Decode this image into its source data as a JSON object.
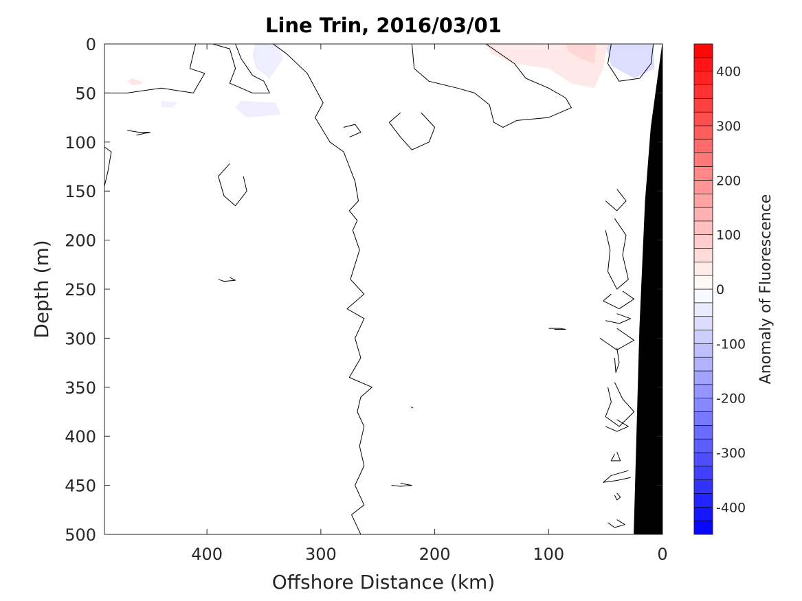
{
  "chart_data": {
    "type": "contour",
    "title": "Line Trin, 2016/03/01",
    "xlabel": "Offshore Distance (km)",
    "ylabel": "Depth (m)",
    "xlim": [
      490,
      0
    ],
    "ylim": [
      0,
      500
    ],
    "x_reversed": true,
    "y_reversed": true,
    "xticks": [
      400,
      300,
      200,
      100,
      0
    ],
    "yticks": [
      0,
      50,
      100,
      150,
      200,
      250,
      300,
      350,
      400,
      450,
      500
    ],
    "colorbar": {
      "label": "Anomaly of Fluorescence",
      "range": [
        -450,
        450
      ],
      "ticks": [
        400,
        300,
        200,
        100,
        0,
        -100,
        -200,
        -300,
        -400
      ],
      "levels": 36,
      "colors": {
        "max": "#ff0000",
        "mid": "#ffffff",
        "min": "#0000ff"
      }
    },
    "bathymetry": {
      "label": "",
      "fill": "#000000",
      "points": [
        [
          0,
          0
        ],
        [
          10,
          85
        ],
        [
          15,
          160
        ],
        [
          20,
          290
        ],
        [
          25,
          500
        ],
        [
          0,
          500
        ]
      ]
    },
    "fills": [
      {
        "value": -380,
        "points": [
          [
            45,
            0
          ],
          [
            10,
            0
          ],
          [
            9,
            12
          ],
          [
            18,
            20
          ],
          [
            30,
            20
          ],
          [
            42,
            14
          ]
        ]
      },
      {
        "value": -280,
        "points": [
          [
            42,
            0
          ],
          [
            13,
            0
          ],
          [
            12,
            10
          ],
          [
            20,
            15
          ],
          [
            32,
            14
          ],
          [
            40,
            8
          ]
        ]
      },
      {
        "value": -180,
        "points": [
          [
            38,
            0
          ],
          [
            16,
            0
          ],
          [
            14,
            6
          ],
          [
            22,
            10
          ],
          [
            34,
            8
          ]
        ]
      },
      {
        "value": -60,
        "points": [
          [
            50,
            0
          ],
          [
            8,
            0
          ],
          [
            7,
            25
          ],
          [
            25,
            35
          ],
          [
            45,
            22
          ]
        ]
      },
      {
        "value": 40,
        "points": [
          [
            155,
            0
          ],
          [
            48,
            0
          ],
          [
            52,
            25
          ],
          [
            60,
            45
          ],
          [
            80,
            40
          ],
          [
            100,
            25
          ],
          [
            130,
            20
          ],
          [
            150,
            10
          ]
        ]
      },
      {
        "value": 70,
        "points": [
          [
            85,
            0
          ],
          [
            58,
            0
          ],
          [
            60,
            20
          ],
          [
            72,
            15
          ],
          [
            82,
            8
          ]
        ]
      },
      {
        "value": 45,
        "points": [
          [
            465,
            35
          ],
          [
            455,
            40
          ],
          [
            465,
            42
          ],
          [
            470,
            38
          ]
        ]
      },
      {
        "value": -30,
        "points": [
          [
            358,
            0
          ],
          [
            338,
            0
          ],
          [
            333,
            15
          ],
          [
            345,
            35
          ],
          [
            357,
            25
          ],
          [
            360,
            12
          ]
        ]
      },
      {
        "value": -30,
        "points": [
          [
            370,
            58
          ],
          [
            340,
            60
          ],
          [
            335,
            72
          ],
          [
            365,
            75
          ],
          [
            375,
            65
          ]
        ]
      },
      {
        "value": -25,
        "points": [
          [
            440,
            58
          ],
          [
            425,
            60
          ],
          [
            430,
            65
          ],
          [
            440,
            64
          ]
        ]
      }
    ],
    "contours": [
      {
        "value": 0,
        "points": [
          [
            410,
            0
          ],
          [
            415,
            25
          ],
          [
            402,
            30
          ],
          [
            412,
            50
          ],
          [
            440,
            45
          ],
          [
            470,
            50
          ],
          [
            490,
            50
          ]
        ]
      },
      {
        "value": 0,
        "points": [
          [
            395,
            0
          ],
          [
            380,
            5
          ],
          [
            375,
            25
          ],
          [
            380,
            40
          ],
          [
            360,
            50
          ],
          [
            345,
            50
          ],
          [
            350,
            38
          ],
          [
            360,
            32
          ],
          [
            370,
            15
          ],
          [
            375,
            0
          ]
        ]
      },
      {
        "value": 0,
        "points": [
          [
            342,
            0
          ],
          [
            330,
            10
          ],
          [
            312,
            30
          ],
          [
            298,
            60
          ],
          [
            305,
            75
          ],
          [
            292,
            100
          ],
          [
            280,
            110
          ],
          [
            275,
            125
          ],
          [
            270,
            140
          ],
          [
            267,
            160
          ],
          [
            275,
            170
          ],
          [
            268,
            180
          ],
          [
            272,
            190
          ],
          [
            266,
            210
          ],
          [
            274,
            240
          ],
          [
            262,
            255
          ],
          [
            277,
            270
          ],
          [
            262,
            280
          ],
          [
            270,
            300
          ],
          [
            265,
            320
          ],
          [
            275,
            340
          ],
          [
            255,
            350
          ],
          [
            265,
            360
          ],
          [
            268,
            375
          ],
          [
            262,
            390
          ],
          [
            266,
            410
          ],
          [
            262,
            430
          ],
          [
            270,
            450
          ],
          [
            262,
            470
          ],
          [
            273,
            480
          ],
          [
            265,
            500
          ]
        ]
      },
      {
        "value": 0,
        "points": [
          [
            220,
            0
          ],
          [
            218,
            25
          ],
          [
            205,
            38
          ],
          [
            180,
            45
          ],
          [
            165,
            50
          ],
          [
            152,
            62
          ],
          [
            148,
            80
          ],
          [
            140,
            85
          ],
          [
            128,
            78
          ],
          [
            100,
            75
          ],
          [
            80,
            65
          ],
          [
            85,
            55
          ],
          [
            100,
            45
          ],
          [
            120,
            35
          ],
          [
            130,
            20
          ],
          [
            155,
            0
          ]
        ]
      },
      {
        "value": 0,
        "points": [
          [
            45,
            0
          ],
          [
            48,
            20
          ],
          [
            38,
            38
          ],
          [
            20,
            35
          ],
          [
            10,
            20
          ],
          [
            8,
            0
          ]
        ]
      },
      {
        "value": 0,
        "points": [
          [
            280,
            85
          ],
          [
            270,
            82
          ],
          [
            265,
            90
          ],
          [
            275,
            95
          ]
        ]
      },
      {
        "value": 0,
        "points": [
          [
            230,
            70
          ],
          [
            240,
            80
          ],
          [
            230,
            95
          ],
          [
            220,
            108
          ],
          [
            205,
            100
          ],
          [
            200,
            85
          ],
          [
            212,
            70
          ]
        ]
      },
      {
        "value": 0,
        "points": [
          [
            470,
            88
          ],
          [
            460,
            90
          ],
          [
            450,
            90
          ],
          [
            462,
            93
          ]
        ]
      },
      {
        "value": 0,
        "points": [
          [
            380,
            122
          ],
          [
            390,
            135
          ],
          [
            385,
            155
          ],
          [
            375,
            165
          ],
          [
            365,
            150
          ],
          [
            368,
            135
          ]
        ]
      },
      {
        "value": 0,
        "points": [
          [
            490,
            105
          ],
          [
            484,
            110
          ],
          [
            487,
            130
          ],
          [
            490,
            145
          ]
        ]
      },
      {
        "value": 0,
        "points": [
          [
            40,
            148
          ],
          [
            32,
            160
          ],
          [
            40,
            170
          ],
          [
            50,
            160
          ]
        ]
      },
      {
        "value": 0,
        "points": [
          [
            42,
            178
          ],
          [
            32,
            195
          ],
          [
            35,
            215
          ],
          [
            30,
            240
          ],
          [
            40,
            250
          ],
          [
            48,
            232
          ],
          [
            46,
            210
          ],
          [
            50,
            190
          ]
        ]
      },
      {
        "value": 0,
        "points": [
          [
            35,
            252
          ],
          [
            25,
            260
          ],
          [
            38,
            270
          ],
          [
            52,
            262
          ],
          [
            45,
            255
          ]
        ]
      },
      {
        "value": 0,
        "points": [
          [
            40,
            275
          ],
          [
            28,
            280
          ],
          [
            38,
            285
          ],
          [
            50,
            282
          ]
        ]
      },
      {
        "value": 0,
        "points": [
          [
            40,
            290
          ],
          [
            25,
            302
          ],
          [
            40,
            312
          ],
          [
            55,
            300
          ]
        ]
      },
      {
        "value": 0,
        "points": [
          [
            40,
            310
          ],
          [
            38,
            325
          ],
          [
            41,
            335
          ],
          [
            42,
            320
          ]
        ]
      },
      {
        "value": 0,
        "points": [
          [
            42,
            345
          ],
          [
            35,
            362
          ],
          [
            25,
            375
          ],
          [
            38,
            390
          ],
          [
            50,
            380
          ],
          [
            45,
            365
          ],
          [
            48,
            350
          ]
        ]
      },
      {
        "value": 0,
        "points": [
          [
            40,
            383
          ],
          [
            30,
            390
          ],
          [
            40,
            395
          ],
          [
            50,
            390
          ]
        ]
      },
      {
        "value": 0,
        "points": [
          [
            40,
            416
          ],
          [
            37,
            425
          ],
          [
            45,
            425
          ],
          [
            42,
            418
          ]
        ]
      },
      {
        "value": 0,
        "points": [
          [
            30,
            435
          ],
          [
            45,
            440
          ],
          [
            52,
            447
          ],
          [
            40,
            445
          ],
          [
            28,
            442
          ]
        ]
      },
      {
        "value": 0,
        "points": [
          [
            40,
            458
          ],
          [
            37,
            462
          ],
          [
            40,
            465
          ],
          [
            42,
            460
          ]
        ]
      },
      {
        "value": 0,
        "points": [
          [
            40,
            485
          ],
          [
            33,
            490
          ],
          [
            42,
            493
          ],
          [
            48,
            488
          ]
        ]
      },
      {
        "value": 0,
        "points": [
          [
            100,
            290
          ],
          [
            90,
            290
          ],
          [
            85,
            291
          ],
          [
            95,
            291
          ]
        ]
      },
      {
        "value": 0,
        "points": [
          [
            380,
            238
          ],
          [
            375,
            241
          ],
          [
            385,
            242
          ],
          [
            390,
            240
          ]
        ]
      },
      {
        "value": 0,
        "points": [
          [
            230,
            448
          ],
          [
            220,
            450
          ],
          [
            230,
            451
          ],
          [
            238,
            450
          ]
        ]
      },
      {
        "value": 0,
        "points": [
          [
            221,
            370
          ],
          [
            219,
            371
          ]
        ]
      }
    ]
  }
}
